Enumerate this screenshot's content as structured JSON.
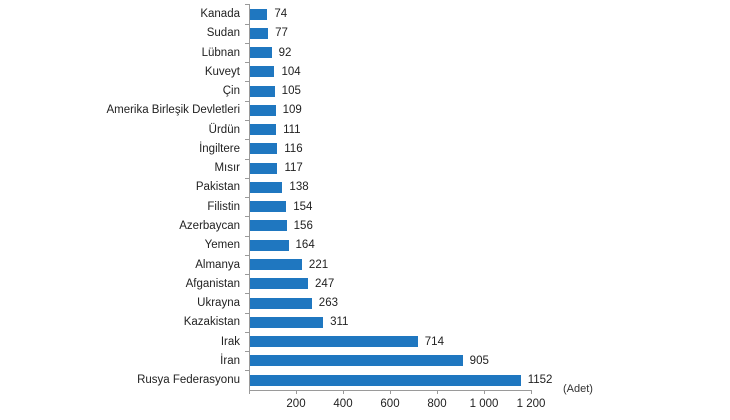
{
  "chart_data": {
    "type": "bar",
    "orientation": "horizontal",
    "title": "",
    "xlabel": "(Adet)",
    "ylabel": "",
    "xlim": [
      0,
      1200
    ],
    "x_ticks": [
      "200",
      "400",
      "600",
      "800",
      "1 000",
      "1 200"
    ],
    "x_tick_values": [
      200,
      400,
      600,
      800,
      1000,
      1200
    ],
    "grid": false,
    "legend": null,
    "bar_color": "#1f77c0",
    "categories": [
      "Kanada",
      "Sudan",
      "Lübnan",
      "Kuveyt",
      "Çin",
      "Amerika Birleşik Devletleri",
      "Ürdün",
      "İngiltere",
      "Mısır",
      "Pakistan",
      "Filistin",
      "Azerbaycan",
      "Yemen",
      "Almanya",
      "Afganistan",
      "Ukrayna",
      "Kazakistan",
      "Irak",
      "İran",
      "Rusya Federasyonu"
    ],
    "values": [
      74,
      77,
      92,
      104,
      105,
      109,
      111,
      116,
      117,
      138,
      154,
      156,
      164,
      221,
      247,
      263,
      311,
      714,
      905,
      1152
    ],
    "value_labels": [
      "74",
      "77",
      "92",
      "104",
      "105",
      "109",
      "111",
      "116",
      "117",
      "138",
      "154",
      "156",
      "164",
      "221",
      "247",
      "263",
      "311",
      "714",
      "905",
      "1152"
    ]
  }
}
